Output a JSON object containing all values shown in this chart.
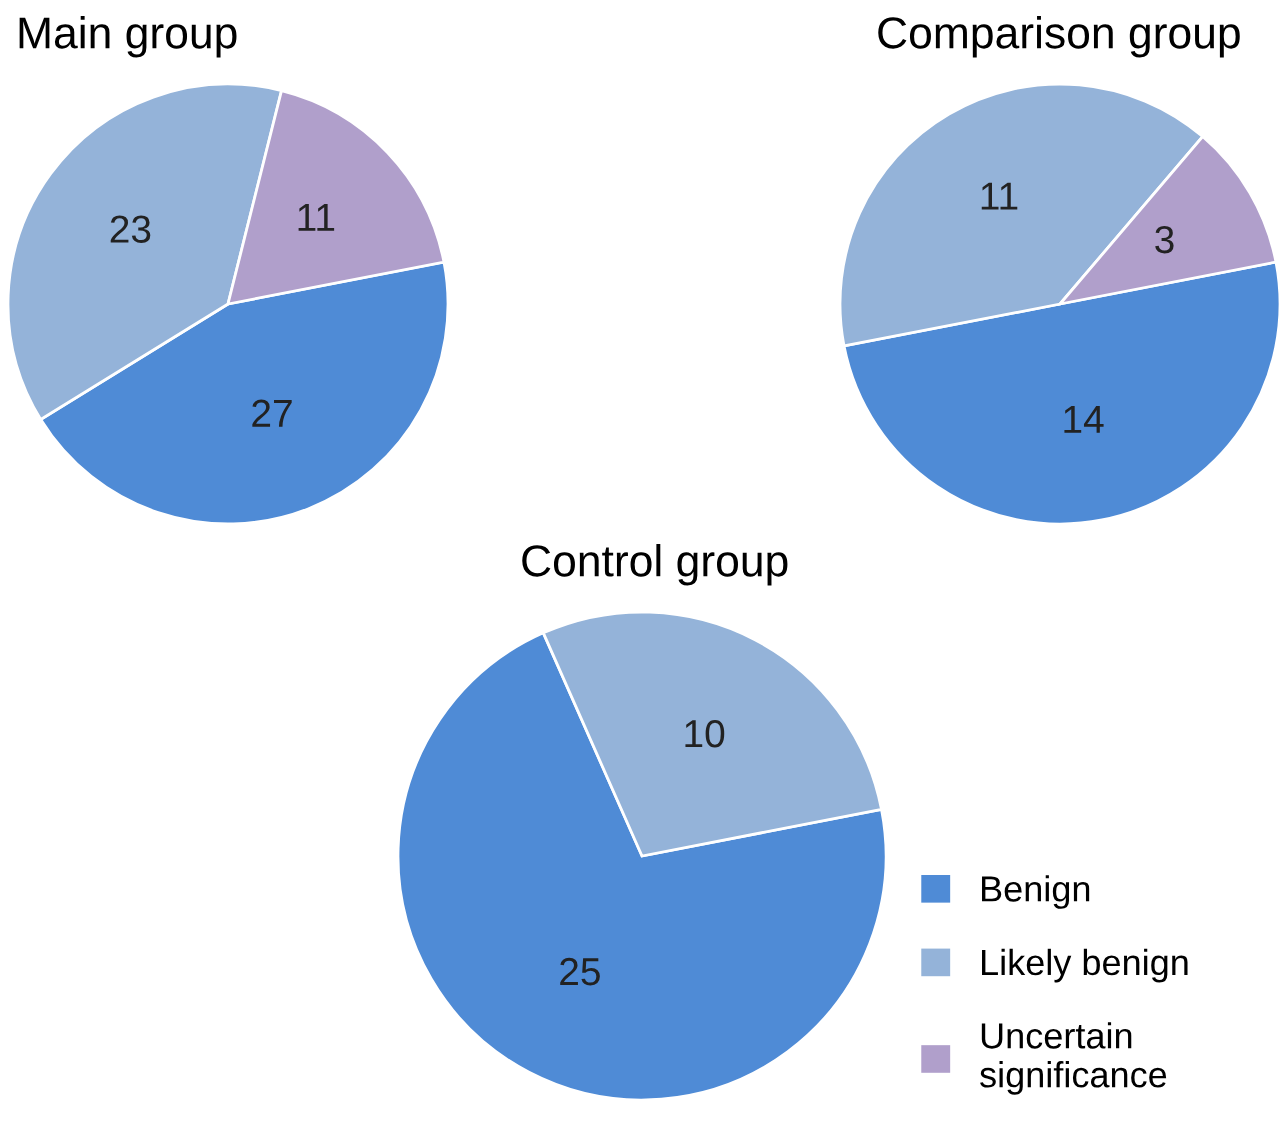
{
  "chart_data": [
    {
      "type": "pie",
      "title": "Main group",
      "categories": [
        "Benign",
        "Likely benign",
        "Uncertain significance"
      ],
      "values": [
        27,
        23,
        11
      ],
      "colors": [
        "#4f8bd6",
        "#94b3d9",
        "#b09fcb"
      ],
      "data_labels": true,
      "legend": "bottom right"
    },
    {
      "type": "pie",
      "title": "Comparison group",
      "categories": [
        null,
        null,
        null
      ],
      "values": [
        14,
        11,
        3
      ],
      "colors": [
        "#4f8bd6",
        "#94b3d9",
        "#b09fcb"
      ],
      "data_labels": true
    },
    {
      "type": "pie",
      "title": "Control group",
      "categories": [
        null,
        null
      ],
      "values": [
        25,
        10
      ],
      "colors": [
        "#4f8bd6",
        "#94b3d9"
      ],
      "data_labels": true
    }
  ]
}
